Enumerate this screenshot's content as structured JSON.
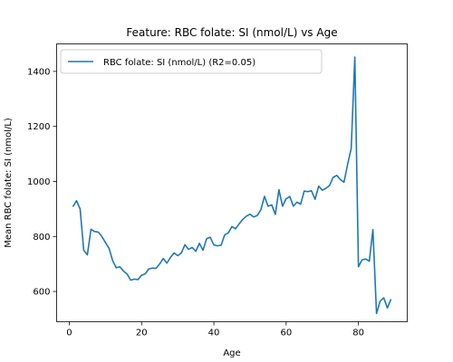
{
  "chart_data": {
    "type": "line",
    "title": "Feature: RBC folate: SI (nmol/L) vs Age",
    "xlabel": "Age",
    "ylabel": "Mean RBC folate: SI (nmol/L)",
    "xlim": [
      -3.5,
      93.5
    ],
    "ylim": [
      490,
      1500
    ],
    "xticks": [
      0,
      20,
      40,
      60,
      80
    ],
    "yticks": [
      600,
      800,
      1000,
      1200,
      1400
    ],
    "xtick_labels": [
      "0",
      "20",
      "40",
      "60",
      "80"
    ],
    "ytick_labels": [
      "600",
      "800",
      "1000",
      "1200",
      "1400"
    ],
    "legend_position": "top-left",
    "grid": false,
    "series": [
      {
        "name": "RBC folate: SI (nmol/L) (R2=0.05)",
        "color": "#1f77b4",
        "x": [
          1,
          2,
          3,
          4,
          5,
          6,
          7,
          8,
          9,
          10,
          11,
          12,
          13,
          14,
          15,
          16,
          17,
          18,
          19,
          20,
          21,
          22,
          23,
          24,
          25,
          26,
          27,
          28,
          29,
          30,
          31,
          32,
          33,
          34,
          35,
          36,
          37,
          38,
          39,
          40,
          41,
          42,
          43,
          44,
          45,
          46,
          47,
          48,
          49,
          50,
          51,
          52,
          53,
          54,
          55,
          56,
          57,
          58,
          59,
          60,
          61,
          62,
          63,
          64,
          65,
          66,
          67,
          68,
          69,
          70,
          71,
          72,
          73,
          74,
          75,
          76,
          77,
          78,
          79,
          80,
          81,
          82,
          83,
          84,
          85,
          86,
          87,
          88,
          89,
          90
        ],
        "y": [
          908,
          930,
          900,
          750,
          733,
          826,
          818,
          816,
          800,
          778,
          757,
          712,
          686,
          690,
          674,
          663,
          641,
          645,
          643,
          659,
          664,
          682,
          685,
          684,
          700,
          720,
          703,
          724,
          740,
          730,
          740,
          770,
          753,
          760,
          746,
          775,
          750,
          792,
          797,
          769,
          766,
          768,
          806,
          813,
          836,
          828,
          846,
          862,
          874,
          881,
          871,
          876,
          897,
          946,
          910,
          915,
          880,
          970,
          910,
          937,
          945,
          910,
          925,
          917,
          965,
          963,
          966,
          935,
          983,
          968,
          975,
          985,
          1015,
          1022,
          1007,
          997,
          1062,
          1120,
          1452,
          690,
          715,
          718,
          710,
          825,
          520,
          565,
          577,
          540,
          572,
          null
        ]
      }
    ]
  }
}
